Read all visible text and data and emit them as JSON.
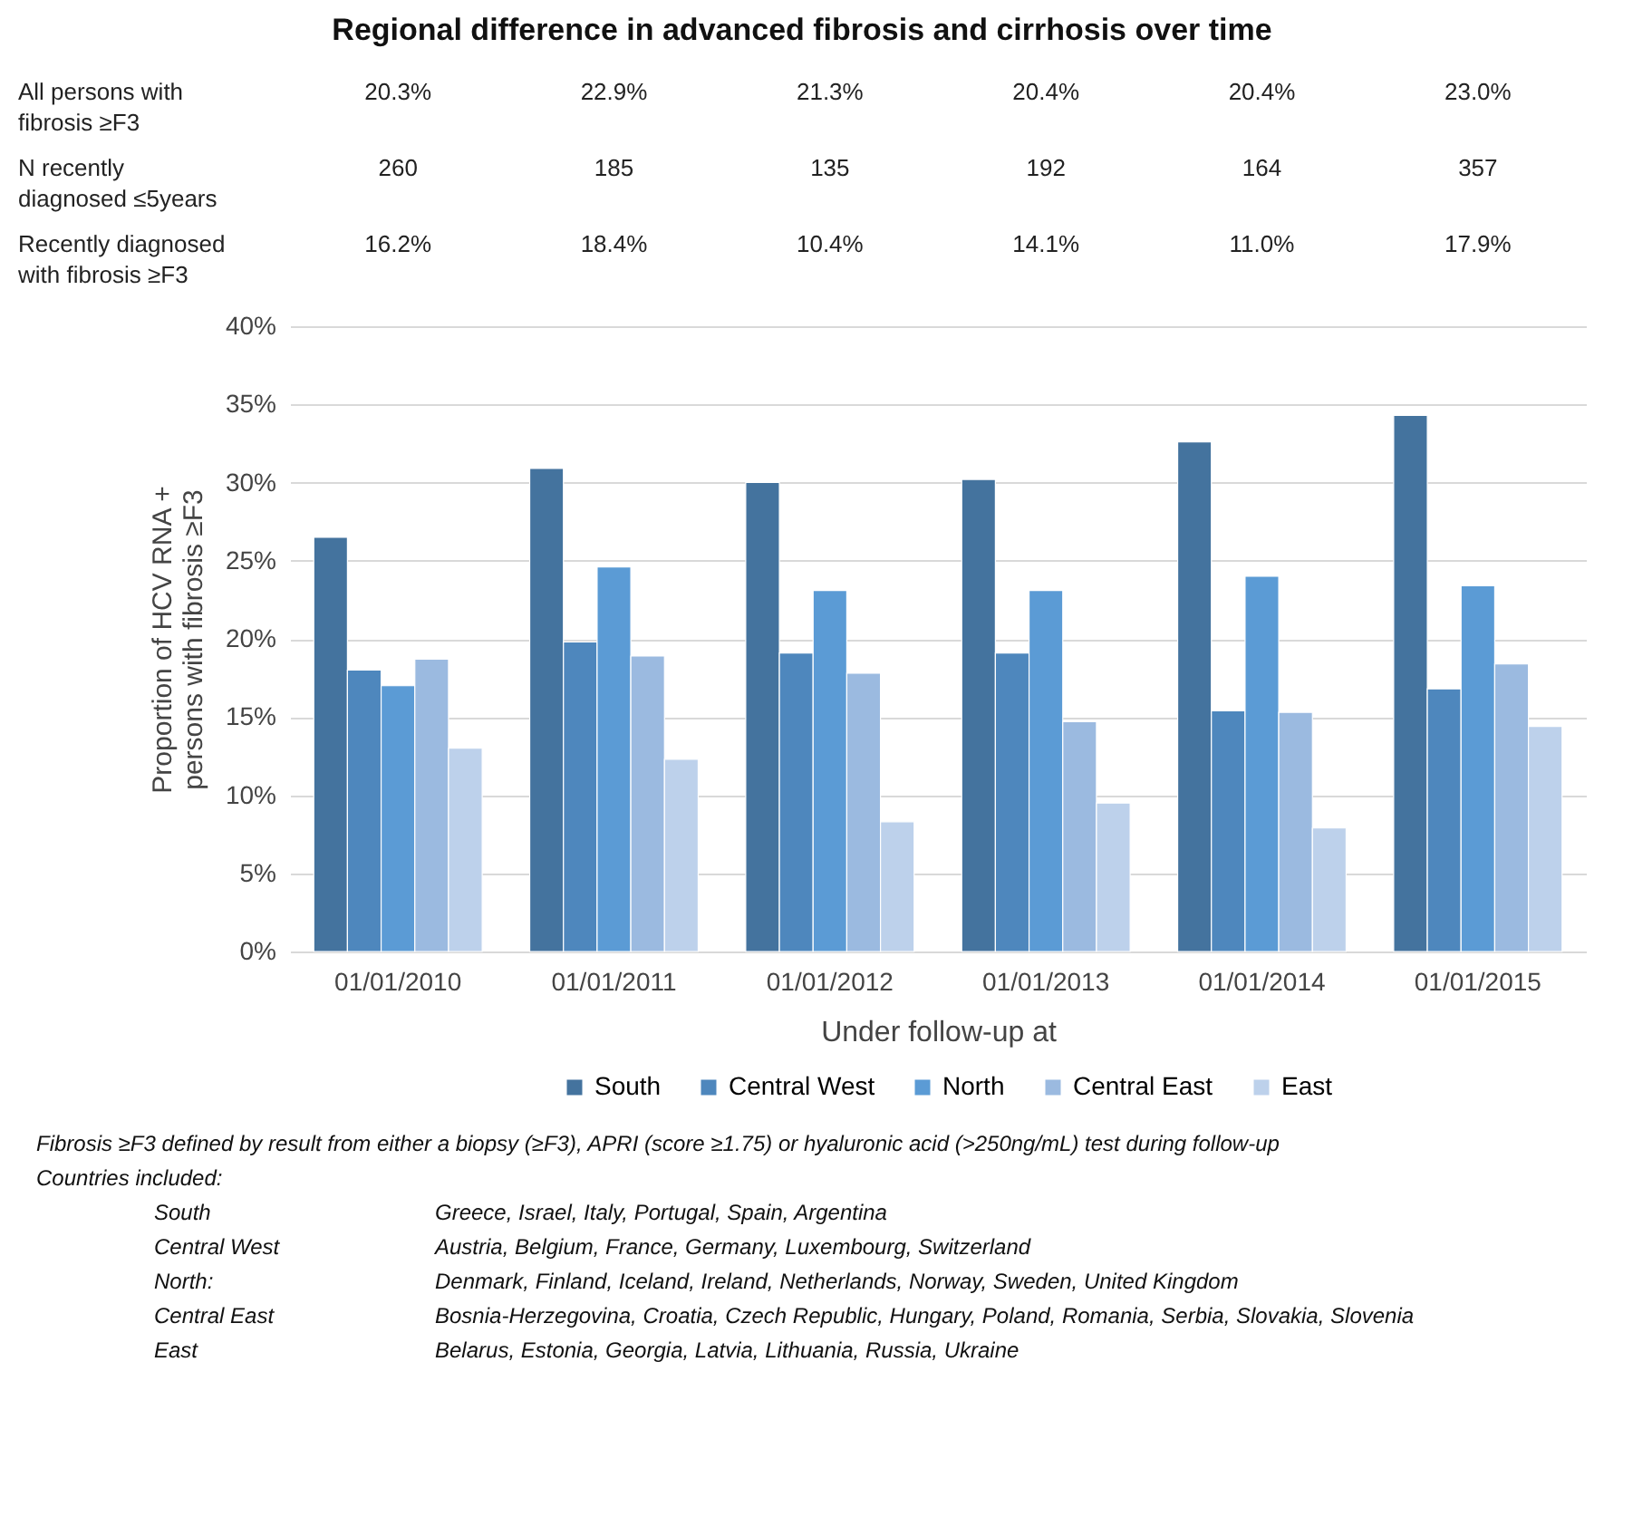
{
  "chart_data": {
    "type": "bar",
    "title": "Regional difference in advanced fibrosis and cirrhosis over time",
    "categories": [
      "01/01/2010",
      "01/01/2011",
      "01/01/2012",
      "01/01/2013",
      "01/01/2014",
      "01/01/2015"
    ],
    "series": [
      {
        "name": "South",
        "color": "#44739e",
        "values": [
          26.5,
          30.9,
          30.0,
          30.2,
          32.6,
          34.3
        ]
      },
      {
        "name": "Central West",
        "color": "#4e87bd",
        "values": [
          18.0,
          19.8,
          19.1,
          19.1,
          15.4,
          16.8
        ]
      },
      {
        "name": "North",
        "color": "#5b9bd5",
        "values": [
          17.0,
          24.6,
          23.1,
          23.1,
          24.0,
          23.4
        ]
      },
      {
        "name": "Central East",
        "color": "#9bbae0",
        "values": [
          18.7,
          18.9,
          17.8,
          14.7,
          15.3,
          18.4
        ]
      },
      {
        "name": "East",
        "color": "#bdd1eb",
        "values": [
          13.0,
          12.3,
          8.3,
          9.5,
          7.9,
          14.4
        ]
      }
    ],
    "xlabel": "Under follow-up at",
    "ylabel": "Proportion of HCV RNA +\npersons with fibrosis ≥F3",
    "ylim": [
      0,
      40
    ],
    "yticks": [
      {
        "value": 0,
        "label": "0%"
      },
      {
        "value": 5,
        "label": "5%"
      },
      {
        "value": 10,
        "label": "10%"
      },
      {
        "value": 15,
        "label": "15%"
      },
      {
        "value": 20,
        "label": "20%"
      },
      {
        "value": 25,
        "label": "25%"
      },
      {
        "value": 30,
        "label": "30%"
      },
      {
        "value": 35,
        "label": "35%"
      },
      {
        "value": 40,
        "label": "40%"
      }
    ],
    "grid": "y",
    "legend": "bottom",
    "annotations": [
      "All persons with\nfibrosis ≥F3",
      "20.3%",
      "22.9%",
      "21.3%",
      "20.4%",
      "20.4%",
      "23.0%",
      "N recently\ndiagnosed ≤5years",
      "260",
      "185",
      "135",
      "192",
      "164",
      "357",
      "Recently diagnosed\nwith fibrosis ≥F3",
      "16.2%",
      "18.4%",
      "10.4%",
      "14.1%",
      "11.0%",
      "17.9%",
      "Fibrosis ≥F3 defined by result from either a biopsy (≥F3), APRI (score ≥1.75) or hyaluronic acid (>250ng/mL) test during follow-up",
      "Countries included:",
      "South",
      "Greece, Israel, Italy, Portugal, Spain, Argentina",
      "Central West",
      "Austria, Belgium, France, Germany, Luxembourg, Switzerland",
      "North:",
      "Denmark, Finland, Iceland, Ireland, Netherlands, Norway, Sweden, United Kingdom",
      "Central East",
      "Bosnia-Herzegovina, Croatia, Czech Republic, Hungary, Poland, Romania, Serbia, Slovakia, Slovenia",
      "East",
      "Belarus, Estonia, Georgia, Latvia, Lithuania, Russia, Ukraine"
    ]
  }
}
